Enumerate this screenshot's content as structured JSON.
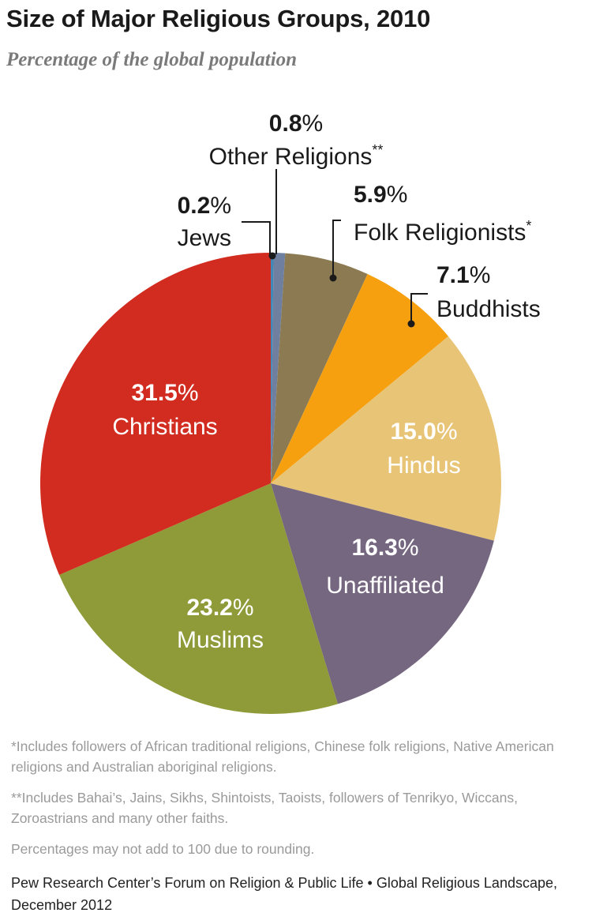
{
  "chart_data": {
    "type": "pie",
    "title": "Size of Major Religious Groups, 2010",
    "subtitle": "Percentage of the global population",
    "unit": "%",
    "slices": [
      {
        "name": "Jews",
        "value": 0.2,
        "label": "0.2%",
        "color": "#3f88b8"
      },
      {
        "name": "Other Religions**",
        "value": 0.8,
        "label": "0.8%",
        "color": "#6f7fa0"
      },
      {
        "name": "Folk Religionists*",
        "value": 5.9,
        "label": "5.9%",
        "color": "#8c7b52"
      },
      {
        "name": "Buddhists",
        "value": 7.1,
        "label": "7.1%",
        "color": "#f7a00f"
      },
      {
        "name": "Hindus",
        "value": 15.0,
        "label": "15.0%",
        "color": "#e8c477"
      },
      {
        "name": "Unaffiliated",
        "value": 16.3,
        "label": "16.3%",
        "color": "#766781"
      },
      {
        "name": "Muslims",
        "value": 23.2,
        "label": "23.2%",
        "color": "#8f9a38"
      },
      {
        "name": "Christians",
        "value": 31.5,
        "label": "31.5%",
        "color": "#d12c1f"
      }
    ]
  },
  "notes": [
    "*Includes followers of African traditional religions, Chinese folk religions, Native American religions and Australian aboriginal religions.",
    "**Includes Bahai’s, Jains, Sikhs, Shintoists, Taoists, followers of Tenrikyo, Wiccans, Zoroastrians and many other faiths.",
    "Percentages may not add to 100 due to rounding."
  ],
  "source": "Pew Research Center’s Forum on Religion & Public Life • Global Religious Landscape, December 2012"
}
